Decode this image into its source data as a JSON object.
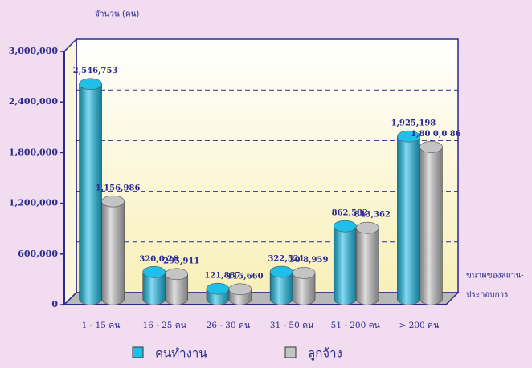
{
  "chart_data": {
    "type": "bar3d",
    "ylabel": "จำนวน (คน)",
    "xlabel": [
      "ขนาดของสถาน-",
      "ประกอบการ"
    ],
    "categories": [
      "1 - 15 คน",
      "16 - 25 คน",
      "26 - 30 คน",
      "31 - 50 คน",
      "51 - 200 คน",
      "> 200 คน"
    ],
    "series": [
      {
        "name": "คนทำงาน",
        "color": "#1ec0ea",
        "values": [
          2546753,
          320026,
          121887,
          322521,
          862582,
          1925198
        ],
        "value_labels": [
          "2,546,753",
          "320,0 26",
          "121,887",
          "322,521",
          "862,582",
          "1,925,198"
        ]
      },
      {
        "name": "ลูกจ้าง",
        "color": "#c4c4c4",
        "values": [
          1156986,
          295911,
          115660,
          308959,
          843362,
          1800086
        ],
        "value_labels": [
          "1,156,986",
          "295,911",
          "115,660",
          "30 8,959",
          "843,362",
          "1,80 0,0 86"
        ]
      }
    ],
    "ylim": [
      0,
      3000000
    ],
    "yticks": [
      0,
      {
        "value": 600000,
        "label": "600,000"
      },
      {
        "value": 1200000,
        "label": "1,200,000"
      },
      {
        "value": 1800000,
        "label": "1,800,000"
      },
      {
        "value": 2400000,
        "label": "2,400,000"
      },
      {
        "value": 3000000,
        "label": "3,000,000"
      }
    ],
    "grid": true
  }
}
